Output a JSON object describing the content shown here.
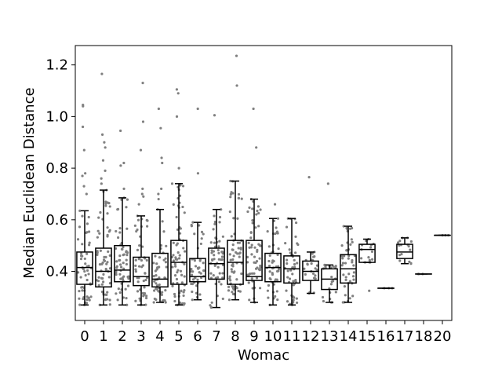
{
  "chart_data": {
    "type": "box",
    "title": "",
    "xlabel": "Womac",
    "ylabel": "Median Euclidean Distance",
    "ylim": [
      0.21,
      1.275
    ],
    "yticks": [
      0.4,
      0.6,
      0.8,
      1.0,
      1.2
    ],
    "ytick_labels": [
      "0.4",
      "0.6",
      "0.8",
      "1.0",
      "1.2"
    ],
    "categories": [
      "0",
      "1",
      "2",
      "3",
      "4",
      "5",
      "6",
      "7",
      "8",
      "9",
      "10",
      "11",
      "12",
      "13",
      "14",
      "15",
      "16",
      "17",
      "18",
      "20"
    ],
    "grid": false,
    "legend": "none",
    "boxes": [
      {
        "category": "0",
        "whisker_low": 0.27,
        "q1": 0.35,
        "median": 0.415,
        "q3": 0.475,
        "whisker_high": 0.635,
        "outliers": [
          0.7,
          0.73,
          0.77,
          0.78,
          0.87,
          0.96,
          1.04,
          1.045
        ]
      },
      {
        "category": "1",
        "whisker_low": 0.27,
        "q1": 0.34,
        "median": 0.4,
        "q3": 0.49,
        "whisker_high": 0.715,
        "outliers": [
          0.74,
          0.76,
          0.79,
          0.83,
          0.88,
          0.9,
          0.93,
          1.165
        ]
      },
      {
        "category": "2",
        "whisker_low": 0.27,
        "q1": 0.36,
        "median": 0.405,
        "q3": 0.5,
        "whisker_high": 0.685,
        "outliers": [
          0.72,
          0.81,
          0.82,
          0.945
        ]
      },
      {
        "category": "3",
        "whisker_low": 0.27,
        "q1": 0.345,
        "median": 0.38,
        "q3": 0.455,
        "whisker_high": 0.615,
        "outliers": [
          0.66,
          0.69,
          0.7,
          0.72,
          0.87,
          0.98,
          1.13
        ]
      },
      {
        "category": "4",
        "whisker_low": 0.28,
        "q1": 0.34,
        "median": 0.37,
        "q3": 0.47,
        "whisker_high": 0.64,
        "outliers": [
          0.68,
          0.7,
          0.72,
          0.82,
          0.84,
          0.955,
          1.03
        ]
      },
      {
        "category": "5",
        "whisker_low": 0.27,
        "q1": 0.35,
        "median": 0.435,
        "q3": 0.52,
        "whisker_high": 0.74,
        "outliers": [
          0.8,
          1.0,
          1.09,
          1.105
        ]
      },
      {
        "category": "6",
        "whisker_low": 0.29,
        "q1": 0.36,
        "median": 0.38,
        "q3": 0.45,
        "whisker_high": 0.59,
        "outliers": [
          0.78,
          1.03
        ]
      },
      {
        "category": "7",
        "whisker_low": 0.26,
        "q1": 0.37,
        "median": 0.43,
        "q3": 0.49,
        "whisker_high": 0.64,
        "outliers": [
          1.005
        ]
      },
      {
        "category": "8",
        "whisker_low": 0.29,
        "q1": 0.35,
        "median": 0.435,
        "q3": 0.52,
        "whisker_high": 0.75,
        "outliers": [
          1.12,
          1.235
        ]
      },
      {
        "category": "9",
        "whisker_low": 0.28,
        "q1": 0.365,
        "median": 0.38,
        "q3": 0.52,
        "whisker_high": 0.68,
        "outliers": [
          0.88,
          1.03
        ]
      },
      {
        "category": "10",
        "whisker_low": 0.27,
        "q1": 0.36,
        "median": 0.415,
        "q3": 0.47,
        "whisker_high": 0.605,
        "outliers": [
          0.66
        ]
      },
      {
        "category": "11",
        "whisker_low": 0.27,
        "q1": 0.355,
        "median": 0.41,
        "q3": 0.46,
        "whisker_high": 0.605,
        "outliers": []
      },
      {
        "category": "12",
        "whisker_low": 0.315,
        "q1": 0.365,
        "median": 0.4,
        "q3": 0.44,
        "whisker_high": 0.475,
        "outliers": [
          0.765
        ]
      },
      {
        "category": "13",
        "whisker_low": 0.28,
        "q1": 0.33,
        "median": 0.37,
        "q3": 0.41,
        "whisker_high": 0.425,
        "outliers": [
          0.74
        ]
      },
      {
        "category": "14",
        "whisker_low": 0.28,
        "q1": 0.355,
        "median": 0.41,
        "q3": 0.465,
        "whisker_high": 0.575,
        "outliers": []
      },
      {
        "category": "15",
        "whisker_low": 0.435,
        "q1": 0.435,
        "median": 0.485,
        "q3": 0.505,
        "whisker_high": 0.525,
        "outliers": [
          0.325
        ]
      },
      {
        "category": "16",
        "whisker_low": 0.335,
        "q1": 0.335,
        "median": 0.335,
        "q3": 0.335,
        "whisker_high": 0.335,
        "outliers": []
      },
      {
        "category": "17",
        "whisker_low": 0.43,
        "q1": 0.45,
        "median": 0.475,
        "q3": 0.505,
        "whisker_high": 0.53,
        "outliers": []
      },
      {
        "category": "18",
        "whisker_low": 0.39,
        "q1": 0.39,
        "median": 0.39,
        "q3": 0.39,
        "whisker_high": 0.39,
        "outliers": []
      },
      {
        "category": "20",
        "whisker_low": 0.54,
        "q1": 0.54,
        "median": 0.54,
        "q3": 0.54,
        "whisker_high": 0.54,
        "outliers": []
      }
    ],
    "point_color": "#808080",
    "box_color": "#000000"
  }
}
